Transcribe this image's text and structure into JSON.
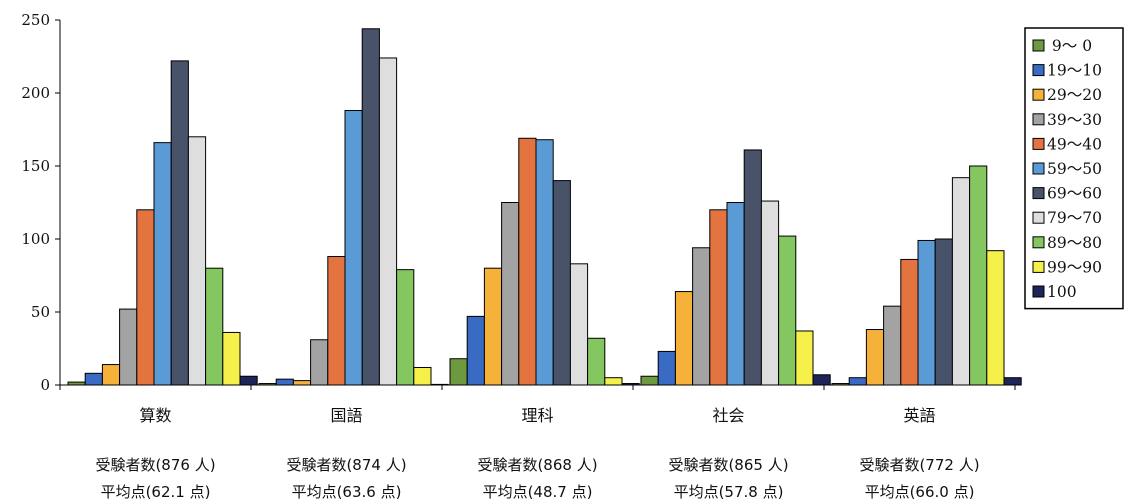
{
  "chart_data": {
    "type": "bar",
    "categories": [
      "算数",
      "国語",
      "理科",
      "社会",
      "英語"
    ],
    "category_notes": [
      {
        "count": "受験者数(876 人)",
        "avg": "平均点(62.1 点)"
      },
      {
        "count": "受験者数(874 人)",
        "avg": "平均点(63.6 点)"
      },
      {
        "count": "受験者数(868 人)",
        "avg": "平均点(48.7 点)"
      },
      {
        "count": "受験者数(865 人)",
        "avg": "平均点(57.8 点)"
      },
      {
        "count": "受験者数(772 人)",
        "avg": "平均点(66.0 点)"
      }
    ],
    "series": [
      {
        "name": " 9～ 0",
        "color": "#6e9a3f",
        "values": [
          2,
          1,
          18,
          6,
          1
        ]
      },
      {
        "name": "19～10",
        "color": "#3a6bc4",
        "values": [
          8,
          4,
          47,
          23,
          5
        ]
      },
      {
        "name": "29～20",
        "color": "#f6b13a",
        "values": [
          14,
          3,
          80,
          64,
          38
        ]
      },
      {
        "name": "39～30",
        "color": "#a3a3a3",
        "values": [
          52,
          31,
          125,
          94,
          54
        ]
      },
      {
        "name": "49～40",
        "color": "#e4743f",
        "values": [
          120,
          88,
          169,
          120,
          86
        ]
      },
      {
        "name": "59～50",
        "color": "#5a9bd5",
        "values": [
          166,
          188,
          168,
          125,
          99
        ]
      },
      {
        "name": "69～60",
        "color": "#48536a",
        "values": [
          222,
          244,
          140,
          161,
          100
        ]
      },
      {
        "name": "79～70",
        "color": "#dedede",
        "values": [
          170,
          224,
          83,
          126,
          142
        ]
      },
      {
        "name": "89～80",
        "color": "#84c660",
        "values": [
          80,
          79,
          32,
          102,
          150
        ]
      },
      {
        "name": "99～90",
        "color": "#f5f04a",
        "values": [
          36,
          12,
          5,
          37,
          92
        ]
      },
      {
        "name": "100",
        "color": "#1e2559",
        "values": [
          6,
          0,
          1,
          7,
          5
        ]
      }
    ],
    "ylim": [
      0,
      250
    ],
    "yticks": [
      0,
      50,
      100,
      150,
      200,
      250
    ],
    "grid": false,
    "legend_position": "right"
  }
}
